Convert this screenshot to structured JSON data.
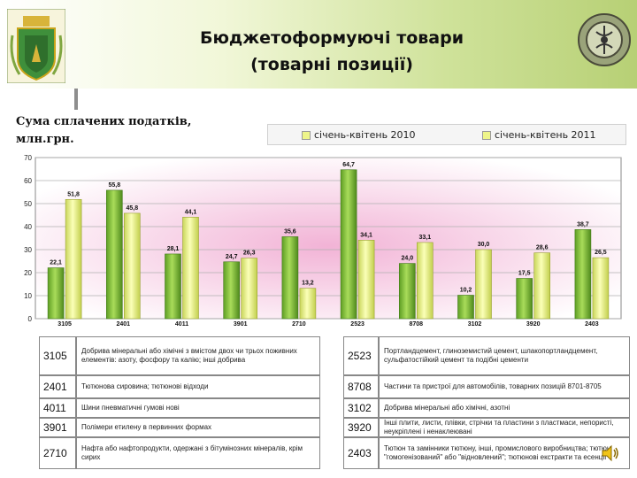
{
  "title": {
    "line1": "Бюджетоформуючі товари",
    "line2": "(товарні позиції)"
  },
  "y_axis_title": {
    "line1": "Сума сплачених податків,",
    "line2": "млн.грн."
  },
  "colors": {
    "series_2010": "#8dc63f",
    "series_2011": "#eef58a",
    "plot_bg_center": "#f2b3d6",
    "header_right": "#b7d075"
  },
  "icons": {
    "coat_of_arms": "coat-of-arms-icon",
    "customs_emblem": "customs-emblem-icon",
    "speaker": "speaker-icon"
  },
  "chart_data": {
    "type": "bar",
    "categories": [
      "3105",
      "2401",
      "4011",
      "3901",
      "2710",
      "2523",
      "8708",
      "3102",
      "3920",
      "2403"
    ],
    "series": [
      {
        "name": "січень-квітень 2010",
        "values": [
          22.1,
          55.8,
          28.1,
          24.7,
          35.6,
          64.7,
          24.0,
          10.2,
          17.5,
          38.7
        ]
      },
      {
        "name": "січень-квітень 2011",
        "values": [
          51.8,
          45.8,
          44.1,
          26.3,
          13.2,
          34.1,
          33.1,
          30.0,
          28.6,
          26.5
        ]
      }
    ],
    "labels": [
      [
        "22,1",
        "55,8",
        "28,1",
        "24,7",
        "35,6",
        "64,7",
        "24,0",
        "10,2",
        "17,5",
        "38,7"
      ],
      [
        "51,8",
        "45,8",
        "44,1",
        "26,3",
        "13,2",
        "34,1",
        "33,1",
        "30,0",
        "28,6",
        "26,5"
      ]
    ],
    "ylim": [
      0,
      70
    ],
    "yticks": [
      "0",
      "10",
      "20",
      "30",
      "40",
      "50",
      "60",
      "70"
    ],
    "grid": true,
    "legend_position": "top"
  },
  "table": {
    "left": [
      {
        "code": "3105",
        "desc": "Добрива мінеральні або хімічні з вмістом двох чи трьох поживних елементів: азоту, фосфору та калію; інші добрива"
      },
      {
        "code": "2401",
        "desc": "Тютюнова сировина; тютюнові відходи"
      },
      {
        "code": "4011",
        "desc": "Шини пневматичні гумові нові"
      },
      {
        "code": "3901",
        "desc": "Полімери етилену в первинних формах"
      },
      {
        "code": "2710",
        "desc": "Нафта або нафтопродукти, одержані з бітумінозних мінералів, крім сирих"
      }
    ],
    "right": [
      {
        "code": "2523",
        "desc": "Портландцемент, глиноземистий цемент, шлакопортландцемент, сульфатостійкий цемент та подібні цементи"
      },
      {
        "code": "8708",
        "desc": "Частини та пристрої для автомобілів, товарних позицій 8701-8705"
      },
      {
        "code": "3102",
        "desc": "Добрива мінеральні або хімічні, азотні"
      },
      {
        "code": "3920",
        "desc": "Інші плити, листи, плівки, стрічки та пластини з пластмаси, непористі, неукріплені і ненаклеювані"
      },
      {
        "code": "2403",
        "desc": "Тютюн та замінники тютюну, інші, промислового виробництва; тютюн \"гомогенізований\" або \"відновлений\"; тютюнові екстракти та есенції"
      }
    ]
  }
}
